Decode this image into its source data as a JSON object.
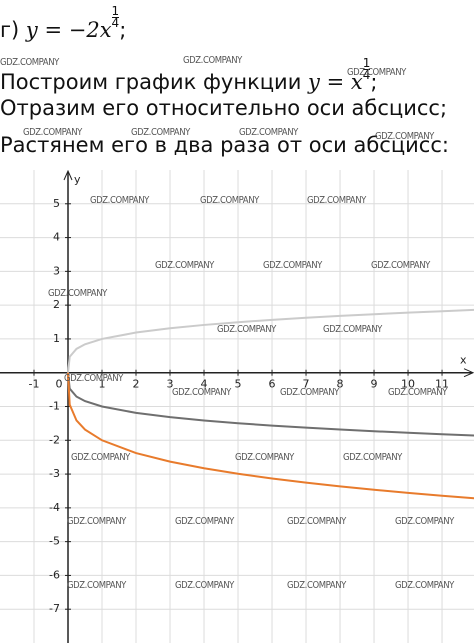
{
  "problem": {
    "label": "г)",
    "formula": "y = −2x",
    "exponent_num": "1",
    "exponent_den": "4",
    "end": ";"
  },
  "steps": [
    {
      "text": "Построим график функции",
      "formula": "y = x",
      "exponent_num": "1",
      "exponent_den": "4",
      "end": ";"
    },
    {
      "text": "Отразим его относительно оси абсцисс;"
    },
    {
      "text": "Растянем его в два раза от оси абсцисс:"
    }
  ],
  "watermark": "GDZ.COMPANY",
  "chart_data": {
    "type": "line",
    "x_label": "x",
    "y_label": "y",
    "x": [
      0,
      0.05,
      0.25,
      0.5,
      1,
      2,
      3,
      4,
      5,
      6,
      7,
      8,
      9,
      10,
      11,
      12
    ],
    "series": [
      {
        "color": "#cbcbcb",
        "values": [
          0,
          0.473,
          0.707,
          0.841,
          1,
          1.189,
          1.316,
          1.414,
          1.495,
          1.565,
          1.627,
          1.682,
          1.732,
          1.778,
          1.821,
          1.861
        ]
      },
      {
        "color": "#6f6f6f",
        "values": [
          0,
          -0.473,
          -0.707,
          -0.841,
          -1,
          -1.189,
          -1.316,
          -1.414,
          -1.495,
          -1.565,
          -1.627,
          -1.682,
          -1.732,
          -1.778,
          -1.821,
          -1.861
        ]
      },
      {
        "color": "#e87b2c",
        "values": [
          0,
          -0.946,
          -1.414,
          -1.682,
          -2,
          -2.378,
          -2.632,
          -2.828,
          -2.991,
          -3.13,
          -3.253,
          -3.364,
          -3.464,
          -3.557,
          -3.642,
          -3.722
        ]
      }
    ],
    "xlim": [
      -2,
      11.94
    ],
    "ylim": [
      -8,
      6
    ],
    "xticks": [
      -1,
      0,
      1,
      2,
      3,
      4,
      5,
      6,
      7,
      8,
      9,
      10,
      11
    ],
    "yticks": [
      -7,
      -6,
      -5,
      -4,
      -3,
      -2,
      -1,
      1,
      2,
      3,
      4,
      5
    ],
    "grid": true
  }
}
